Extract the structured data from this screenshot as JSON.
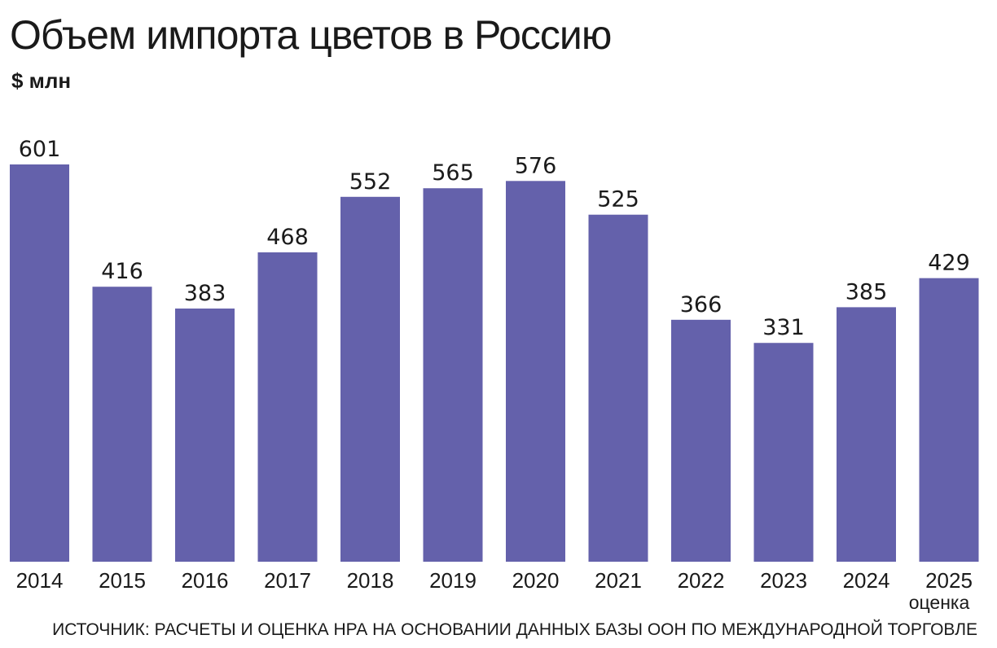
{
  "chart_data": {
    "type": "bar",
    "title": "Объем импорта цветов в Россию",
    "ylabel": "$ млн",
    "xlabel": "",
    "categories": [
      "2014",
      "2015",
      "2016",
      "2017",
      "2018",
      "2019",
      "2020",
      "2021",
      "2022",
      "2023",
      "2024",
      "2025"
    ],
    "values": [
      601,
      416,
      383,
      468,
      552,
      565,
      576,
      525,
      366,
      331,
      385,
      429
    ],
    "category_notes": {
      "2025": "оценка"
    },
    "ylim": [
      0,
      601
    ],
    "grid": false,
    "bar_color": "#6461ab",
    "source": "ИСТОЧНИК: РАСЧЕТЫ И ОЦЕНКА НРА НА ОСНОВАНИИ ДАННЫХ БАЗЫ ООН ПО МЕЖДУНАРОДНОЙ ТОРГОВЛЕ"
  }
}
